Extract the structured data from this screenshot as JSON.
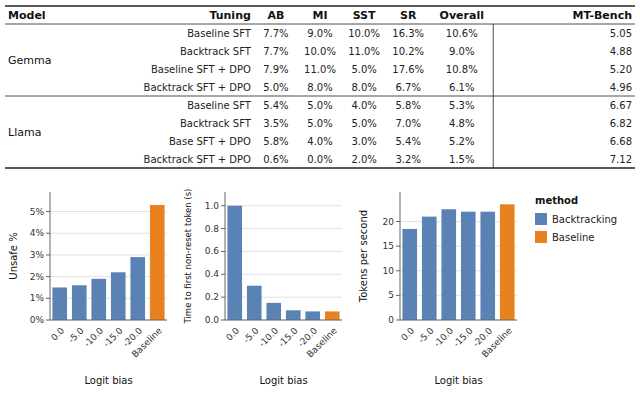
{
  "chart_data": [
    {
      "type": "table",
      "columns": [
        "Model",
        "Tuning",
        "AB",
        "MI",
        "SST",
        "SR",
        "Overall",
        "MT-Bench"
      ],
      "groups": [
        {
          "name": "Gemma",
          "rows": [
            [
              "Baseline SFT",
              "7.7%",
              "9.0%",
              "10.0%",
              "16.3%",
              "10.6%",
              "5.05"
            ],
            [
              "Backtrack SFT",
              "7.7%",
              "10.0%",
              "11.0%",
              "10.2%",
              "9.0%",
              "4.88"
            ],
            [
              "Baseline SFT + DPO",
              "7.9%",
              "11.0%",
              "5.0%",
              "17.6%",
              "10.8%",
              "5.20"
            ],
            [
              "Backtrack SFT + DPO",
              "5.0%",
              "8.0%",
              "8.0%",
              "6.7%",
              "6.1%",
              "4.96"
            ]
          ]
        },
        {
          "name": "Llama",
          "rows": [
            [
              "Baseline SFT",
              "5.4%",
              "5.0%",
              "4.0%",
              "5.8%",
              "5.3%",
              "6.67"
            ],
            [
              "Backtrack SFT",
              "3.5%",
              "5.0%",
              "5.0%",
              "7.0%",
              "4.8%",
              "6.82"
            ],
            [
              "Base SFT + DPO",
              "5.8%",
              "4.0%",
              "3.0%",
              "5.4%",
              "5.2%",
              "6.68"
            ],
            [
              "Backtrack SFT + DPO",
              "0.6%",
              "0.0%",
              "2.0%",
              "3.2%",
              "1.5%",
              "7.12"
            ]
          ]
        }
      ]
    },
    {
      "type": "bar",
      "x_label": "Logit bias",
      "y_label": "Unsafe %",
      "categories": [
        "0.0",
        "-5.0",
        "-10.0",
        "-15.0",
        "-20.0",
        "Baseline"
      ],
      "values": [
        0.015,
        0.016,
        0.019,
        0.022,
        0.029,
        0.053
      ],
      "colors": [
        "#5b82b5",
        "#5b82b5",
        "#5b82b5",
        "#5b82b5",
        "#5b82b5",
        "#e8821e"
      ],
      "ylim": [
        0,
        0.059
      ],
      "yticks": [
        {
          "value": 0,
          "label": "0%"
        },
        {
          "value": 0.01,
          "label": "1%"
        },
        {
          "value": 0.02,
          "label": "2%"
        },
        {
          "value": 0.03,
          "label": "3%"
        },
        {
          "value": 0.04,
          "label": "4%"
        },
        {
          "value": 0.05,
          "label": "5%"
        }
      ],
      "grid": true
    },
    {
      "type": "bar",
      "x_label": "Logit bias",
      "y_label": "Time to first non-reset token (s)",
      "categories": [
        "0.0",
        "-5.0",
        "-10.0",
        "-15.0",
        "-20.0",
        "Baseline"
      ],
      "values": [
        1.0,
        0.3,
        0.15,
        0.085,
        0.075,
        0.075
      ],
      "colors": [
        "#5b82b5",
        "#5b82b5",
        "#5b82b5",
        "#5b82b5",
        "#5b82b5",
        "#e8821e"
      ],
      "ylim": [
        0,
        1.12
      ],
      "yticks": [
        {
          "value": 0,
          "label": "0.0"
        },
        0.2,
        0.4,
        0.6,
        0.8,
        {
          "value": 1,
          "label": "1.0"
        }
      ],
      "grid": true
    },
    {
      "type": "bar",
      "x_label": "Logit bias",
      "y_label": "Tokens per second",
      "categories": [
        "0.0",
        "-5.0",
        "-10.0",
        "-15.0",
        "-20.0",
        "Baseline"
      ],
      "values": [
        18.5,
        21.0,
        22.5,
        22.0,
        22.0,
        23.5
      ],
      "colors": [
        "#5b82b5",
        "#5b82b5",
        "#5b82b5",
        "#5b82b5",
        "#5b82b5",
        "#e8821e"
      ],
      "ylim": [
        0,
        26
      ],
      "yticks": [
        0,
        5,
        10,
        15,
        20
      ],
      "grid": true
    },
    {
      "type": "legend",
      "title": "method",
      "series": [
        {
          "name": "Backtracking",
          "color": "#5b82b5"
        },
        {
          "name": "Baseline",
          "color": "#e8821e"
        }
      ]
    }
  ]
}
